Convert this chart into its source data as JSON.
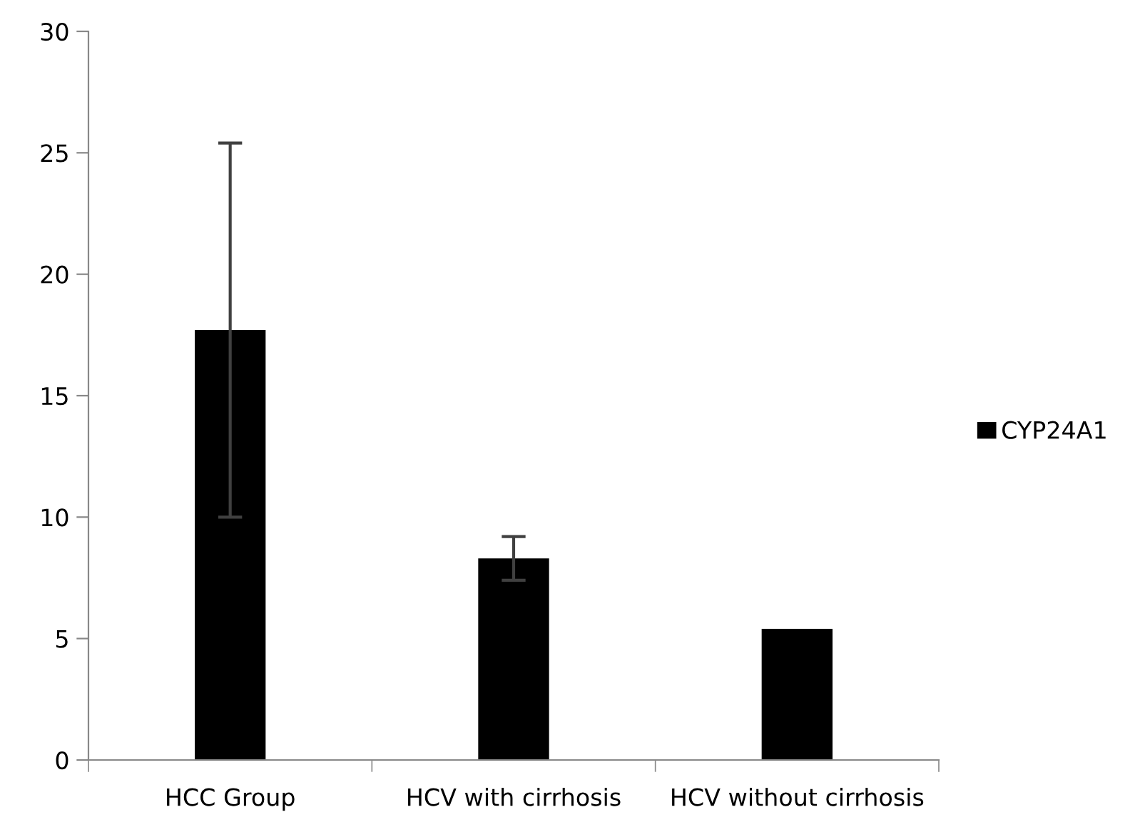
{
  "chart_data": {
    "type": "bar",
    "categories": [
      "HCC Group",
      "HCV with cirrhosis",
      "HCV without cirrhosis"
    ],
    "series": [
      {
        "name": "CYP24A1",
        "color": "#000000",
        "values": [
          17.7,
          8.3,
          5.4
        ],
        "errors": [
          7.7,
          0.9,
          null
        ]
      }
    ],
    "ylim": [
      0,
      30
    ],
    "yticks": [
      0,
      5,
      10,
      15,
      20,
      25,
      30
    ],
    "grid": false,
    "legend": "right"
  }
}
